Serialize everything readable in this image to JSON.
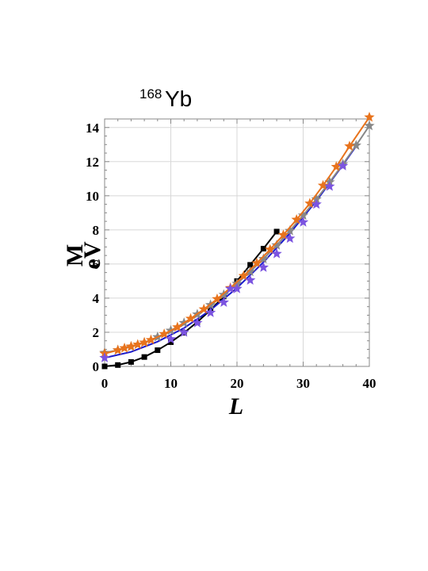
{
  "chart_data": {
    "type": "line",
    "title_superscript": "168",
    "title": "Yb",
    "xlabel": "L",
    "ylabel": "M",
    "ylabel_unit": "eV",
    "xlim": [
      0,
      40
    ],
    "ylim": [
      0,
      14.5
    ],
    "xticks": [
      0,
      10,
      20,
      30,
      40
    ],
    "yticks": [
      0,
      2,
      4,
      6,
      8,
      10,
      12,
      14
    ],
    "grid": true,
    "colors": {
      "black": "#000000",
      "blue": "#1a1acc",
      "gray": "#888888",
      "orange": "#e8731c",
      "purple": "#7b54e0",
      "gridline": "#d8d8d8"
    },
    "series": [
      {
        "color": "black",
        "marker": "square",
        "style": "line+markers",
        "x": [
          0,
          2,
          4,
          6,
          8,
          10,
          12,
          14,
          16,
          18,
          20,
          22,
          24,
          26
        ],
        "y": [
          0.0,
          0.08,
          0.26,
          0.55,
          0.95,
          1.42,
          1.97,
          2.6,
          3.3,
          4.1,
          5.0,
          5.95,
          6.9,
          7.9
        ]
      },
      {
        "color": "blue",
        "marker": "none",
        "style": "line",
        "x": [
          0,
          4,
          8,
          12,
          16,
          20,
          24,
          28,
          32,
          36,
          38
        ],
        "y": [
          0.5,
          0.85,
          1.45,
          2.25,
          3.3,
          4.6,
          6.1,
          7.8,
          9.7,
          11.8,
          12.9
        ]
      },
      {
        "color": "gray",
        "marker": "star",
        "style": "line+markers",
        "x": [
          0,
          2,
          4,
          6,
          8,
          10,
          12,
          14,
          16,
          18,
          20,
          22,
          24,
          26,
          28,
          30,
          32,
          34,
          36,
          38,
          40
        ],
        "y": [
          0.8,
          0.95,
          1.15,
          1.4,
          1.72,
          2.1,
          2.55,
          3.05,
          3.6,
          4.2,
          4.85,
          5.55,
          6.3,
          7.1,
          7.95,
          8.85,
          9.8,
          10.8,
          11.85,
          12.95,
          14.1
        ]
      },
      {
        "color": "orange",
        "marker": "star",
        "style": "line+markers",
        "x": [
          0,
          2,
          3,
          4,
          5,
          6,
          7,
          9,
          11,
          13,
          15,
          17,
          19,
          21,
          23,
          25,
          27,
          29,
          31,
          33,
          35,
          37,
          40
        ],
        "y": [
          0.75,
          0.95,
          1.07,
          1.17,
          1.28,
          1.4,
          1.55,
          1.9,
          2.3,
          2.8,
          3.35,
          3.95,
          4.6,
          5.3,
          6.05,
          6.85,
          7.7,
          8.6,
          9.55,
          10.6,
          11.7,
          12.9,
          14.6
        ]
      },
      {
        "color": "purple",
        "marker": "star",
        "style": "markers",
        "x": [
          0,
          10,
          12,
          14,
          16,
          18,
          19,
          20,
          22,
          24,
          26,
          28,
          30,
          32,
          34,
          36
        ],
        "y": [
          0.5,
          1.6,
          2.0,
          2.55,
          3.15,
          3.75,
          4.55,
          4.55,
          5.05,
          5.8,
          6.6,
          7.5,
          8.45,
          9.5,
          10.55,
          11.75
        ]
      }
    ]
  }
}
